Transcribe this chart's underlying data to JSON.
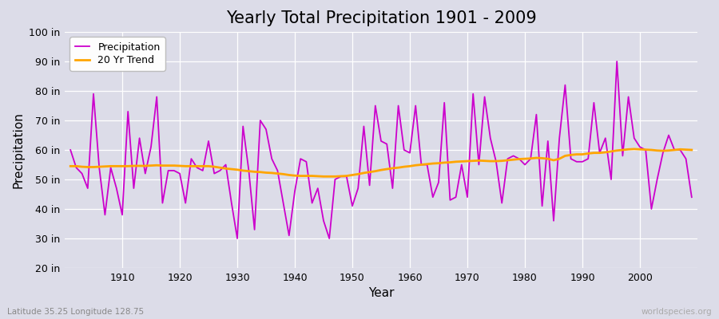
{
  "title": "Yearly Total Precipitation 1901 - 2009",
  "xlabel": "Year",
  "ylabel": "Precipitation",
  "subtitle": "Latitude 35.25 Longitude 128.75",
  "watermark": "worldspecies.org",
  "ylim": [
    20,
    100
  ],
  "yticks": [
    20,
    30,
    40,
    50,
    60,
    70,
    80,
    90,
    100
  ],
  "ytick_labels": [
    "20 in",
    "30 in",
    "40 in",
    "50 in",
    "60 in",
    "70 in",
    "80 in",
    "90 in",
    "100 in"
  ],
  "years": [
    1901,
    1902,
    1903,
    1904,
    1905,
    1906,
    1907,
    1908,
    1909,
    1910,
    1911,
    1912,
    1913,
    1914,
    1915,
    1916,
    1917,
    1918,
    1919,
    1920,
    1921,
    1922,
    1923,
    1924,
    1925,
    1926,
    1927,
    1928,
    1929,
    1930,
    1931,
    1932,
    1933,
    1934,
    1935,
    1936,
    1937,
    1938,
    1939,
    1940,
    1941,
    1942,
    1943,
    1944,
    1945,
    1946,
    1947,
    1948,
    1949,
    1950,
    1951,
    1952,
    1953,
    1954,
    1955,
    1956,
    1957,
    1958,
    1959,
    1960,
    1961,
    1962,
    1963,
    1964,
    1965,
    1966,
    1967,
    1968,
    1969,
    1970,
    1971,
    1972,
    1973,
    1974,
    1975,
    1976,
    1977,
    1978,
    1979,
    1980,
    1981,
    1982,
    1983,
    1984,
    1985,
    1986,
    1987,
    1988,
    1989,
    1990,
    1991,
    1992,
    1993,
    1994,
    1995,
    1996,
    1997,
    1998,
    1999,
    2000,
    2001,
    2002,
    2003,
    2004,
    2005,
    2006,
    2007,
    2008,
    2009
  ],
  "precipitation": [
    60,
    54,
    52,
    47,
    79,
    54,
    38,
    54,
    47,
    38,
    73,
    47,
    64,
    52,
    61,
    78,
    42,
    53,
    53,
    52,
    42,
    57,
    54,
    53,
    63,
    52,
    53,
    55,
    42,
    30,
    68,
    53,
    33,
    70,
    67,
    57,
    53,
    42,
    31,
    46,
    57,
    56,
    42,
    47,
    36,
    30,
    50,
    51,
    51,
    41,
    47,
    68,
    48,
    75,
    63,
    62,
    47,
    75,
    60,
    59,
    75,
    55,
    55,
    44,
    49,
    76,
    43,
    44,
    55,
    44,
    79,
    55,
    78,
    64,
    56,
    42,
    57,
    58,
    57,
    55,
    57,
    72,
    41,
    63,
    36,
    64,
    82,
    57,
    56,
    56,
    57,
    76,
    59,
    64,
    50,
    90,
    58,
    78,
    64,
    61,
    60,
    40,
    50,
    59,
    65,
    60,
    60,
    57,
    44
  ],
  "trend": [
    54.5,
    54.5,
    54.3,
    54.2,
    54.2,
    54.3,
    54.4,
    54.5,
    54.5,
    54.5,
    54.5,
    54.6,
    54.6,
    54.6,
    54.7,
    54.8,
    54.7,
    54.7,
    54.7,
    54.6,
    54.5,
    54.5,
    54.5,
    54.5,
    54.5,
    54.3,
    54.0,
    53.7,
    53.5,
    53.3,
    53.0,
    52.8,
    52.6,
    52.5,
    52.3,
    52.2,
    52.0,
    51.8,
    51.5,
    51.3,
    51.2,
    51.2,
    51.2,
    51.1,
    51.0,
    51.0,
    51.0,
    51.1,
    51.2,
    51.5,
    51.8,
    52.2,
    52.5,
    52.8,
    53.2,
    53.5,
    53.8,
    54.0,
    54.3,
    54.5,
    54.8,
    55.0,
    55.2,
    55.4,
    55.5,
    55.7,
    55.8,
    56.0,
    56.1,
    56.2,
    56.3,
    56.4,
    56.3,
    56.2,
    56.2,
    56.3,
    56.5,
    56.7,
    56.9,
    57.0,
    57.1,
    57.3,
    57.2,
    57.0,
    56.5,
    57.0,
    58.0,
    58.3,
    58.5,
    58.5,
    58.8,
    59.0,
    59.0,
    59.2,
    59.5,
    59.8,
    60.0,
    60.2,
    60.3,
    60.2,
    60.1,
    60.0,
    59.8,
    59.7,
    59.8,
    60.0,
    60.2,
    60.1,
    60.0
  ],
  "precip_color": "#CC00CC",
  "trend_color": "#FFA500",
  "bg_color": "#DCDCE8",
  "plot_bg_color": "#DCDCE8",
  "grid_color": "#FFFFFF",
  "title_fontsize": 15,
  "axis_fontsize": 9,
  "legend_fontsize": 9,
  "subtitle_color": "#888888",
  "watermark_color": "#AAAAAA"
}
